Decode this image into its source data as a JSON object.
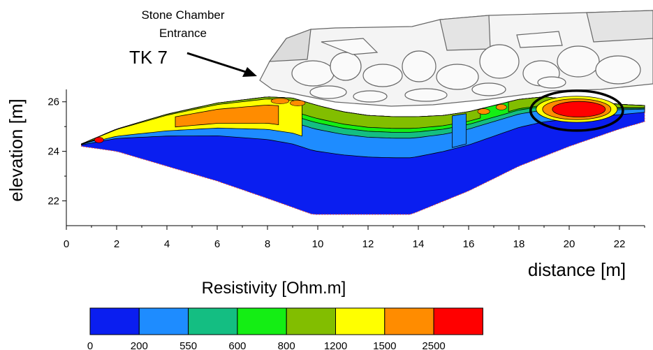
{
  "chart_data": {
    "type": "heatmap",
    "title": "",
    "profile_label": "TK 7",
    "annotation": {
      "line1": "Stone Chamber",
      "line2": "Entrance"
    },
    "xlabel": "distance [m]",
    "ylabel": "elevation [m]",
    "xlim": [
      0,
      23
    ],
    "ylim": [
      21.0,
      26.5
    ],
    "x_ticks": [
      0,
      2,
      4,
      6,
      8,
      10,
      12,
      14,
      16,
      18,
      20,
      22
    ],
    "y_ticks": [
      22,
      24,
      26
    ],
    "grid": false,
    "topography": {
      "x": [
        0.6,
        2,
        4,
        6,
        8,
        9,
        10,
        11,
        12,
        13,
        14,
        15,
        16,
        17,
        18,
        19,
        20,
        21,
        22,
        23
      ],
      "y": [
        24.3,
        24.9,
        25.5,
        25.95,
        26.2,
        26.15,
        25.85,
        25.6,
        25.45,
        25.4,
        25.4,
        25.45,
        25.6,
        25.85,
        26.1,
        26.2,
        26.1,
        26.0,
        25.9,
        25.85
      ]
    },
    "bottom": {
      "x": [
        0.6,
        2,
        4,
        6,
        8,
        9.8,
        12,
        13.7,
        16,
        18,
        20,
        22,
        23
      ],
      "y": [
        24.2,
        24.0,
        23.4,
        22.8,
        22.1,
        21.45,
        21.45,
        21.45,
        22.4,
        23.4,
        24.2,
        24.9,
        25.2
      ]
    },
    "anomaly": {
      "label": "high resistivity anomaly",
      "x": 20.3,
      "y": 25.7,
      "rx": 1.7,
      "ry": 0.7
    },
    "colorbar": {
      "title": "Resistivity [Ohm.m]",
      "boundaries": [
        "0",
        "200",
        "550",
        "600",
        "800",
        "1200",
        "1500",
        "2500"
      ],
      "colors": [
        "#0a1ef0",
        "#1e8cff",
        "#14be82",
        "#14ee14",
        "#82be00",
        "#ffff00",
        "#ff8c00",
        "#ff0000"
      ]
    }
  }
}
